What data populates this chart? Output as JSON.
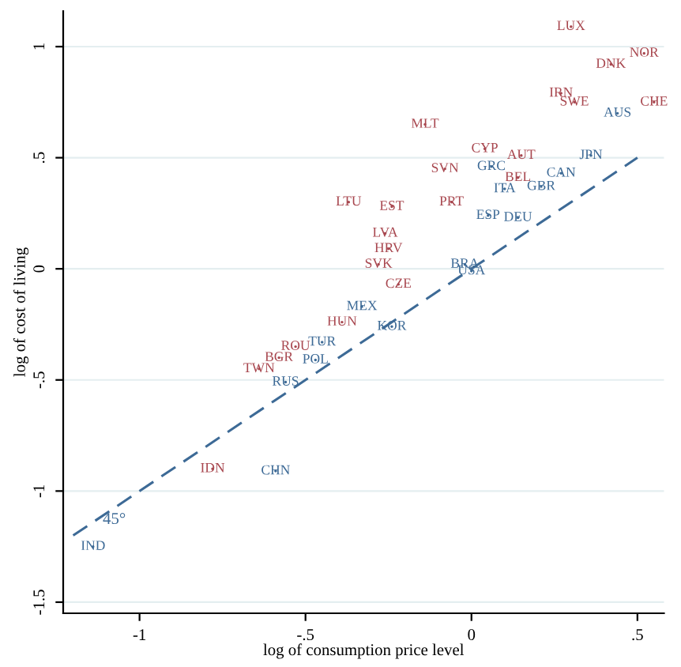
{
  "chart_data": {
    "type": "scatter",
    "xlabel": "log of consumption price level",
    "ylabel": "log of cost of living",
    "xlim": [
      -1.23,
      0.58
    ],
    "ylim": [
      -1.55,
      1.16
    ],
    "xticks": [
      {
        "value": -1,
        "label": "-1"
      },
      {
        "value": -0.5,
        "label": "-.5"
      },
      0,
      {
        "value": 0.5,
        "label": ".5"
      }
    ],
    "yticks": [
      {
        "value": -1.5,
        "label": "-1.5"
      },
      {
        "value": -1,
        "label": "-1"
      },
      {
        "value": -0.5,
        "label": "-.5"
      },
      0,
      {
        "value": 0.5,
        "label": ".5"
      },
      1
    ],
    "grid": "y",
    "series": [
      {
        "color": "#a8474f",
        "x": [
          0.3,
          0.52,
          0.42,
          0.27,
          0.31,
          0.55,
          -0.14,
          0.04,
          0.15,
          -0.08,
          0.14,
          -0.37,
          -0.24,
          -0.06,
          -0.26,
          -0.25,
          -0.28,
          -0.22,
          -0.39,
          -0.53,
          -0.58,
          -0.64,
          -0.78
        ],
        "values": [
          1.09,
          0.97,
          0.92,
          0.79,
          0.75,
          0.75,
          0.65,
          0.54,
          0.51,
          0.45,
          0.41,
          0.3,
          0.28,
          0.3,
          0.16,
          0.09,
          0.02,
          -0.07,
          -0.24,
          -0.35,
          -0.4,
          -0.45,
          -0.9
        ],
        "value_labels": [
          "LUX",
          "NOR",
          "DNK",
          "IRN",
          "SWE",
          "CHE",
          "MLT",
          "CYP",
          "AUT",
          "SVN",
          "BEL",
          "LTU",
          "EST",
          "PRT",
          "LVA",
          "HRV",
          "SVK",
          "CZE",
          "HUN",
          "ROU",
          "BGR",
          "TWN",
          "IDN"
        ]
      },
      {
        "color": "#3d6a96",
        "x": [
          0.44,
          0.36,
          0.06,
          0.27,
          0.21,
          0.1,
          0.05,
          0.14,
          -0.02,
          0,
          -0.33,
          -0.24,
          -0.45,
          -0.47,
          -0.56,
          -0.59,
          -1.14
        ],
        "values": [
          0.7,
          0.51,
          0.46,
          0.43,
          0.37,
          0.36,
          0.24,
          0.23,
          0.02,
          -0.01,
          -0.17,
          -0.26,
          -0.33,
          -0.41,
          -0.51,
          -0.91,
          -1.25
        ],
        "value_labels": [
          "AUS",
          "JPN",
          "GRC",
          "CAN",
          "GBR",
          "ITA",
          "ESP",
          "DEU",
          "BRA",
          "USA",
          "MEX",
          "KOR",
          "TUR",
          "POL",
          "RUS",
          "CHN",
          "IND"
        ]
      },
      {
        "type": "line",
        "color": "#3d6a96",
        "line_style": "dashed",
        "x": [
          -1.2,
          0.5
        ],
        "values": [
          -1.2,
          0.5
        ]
      }
    ],
    "annotations": [
      "45°"
    ]
  }
}
